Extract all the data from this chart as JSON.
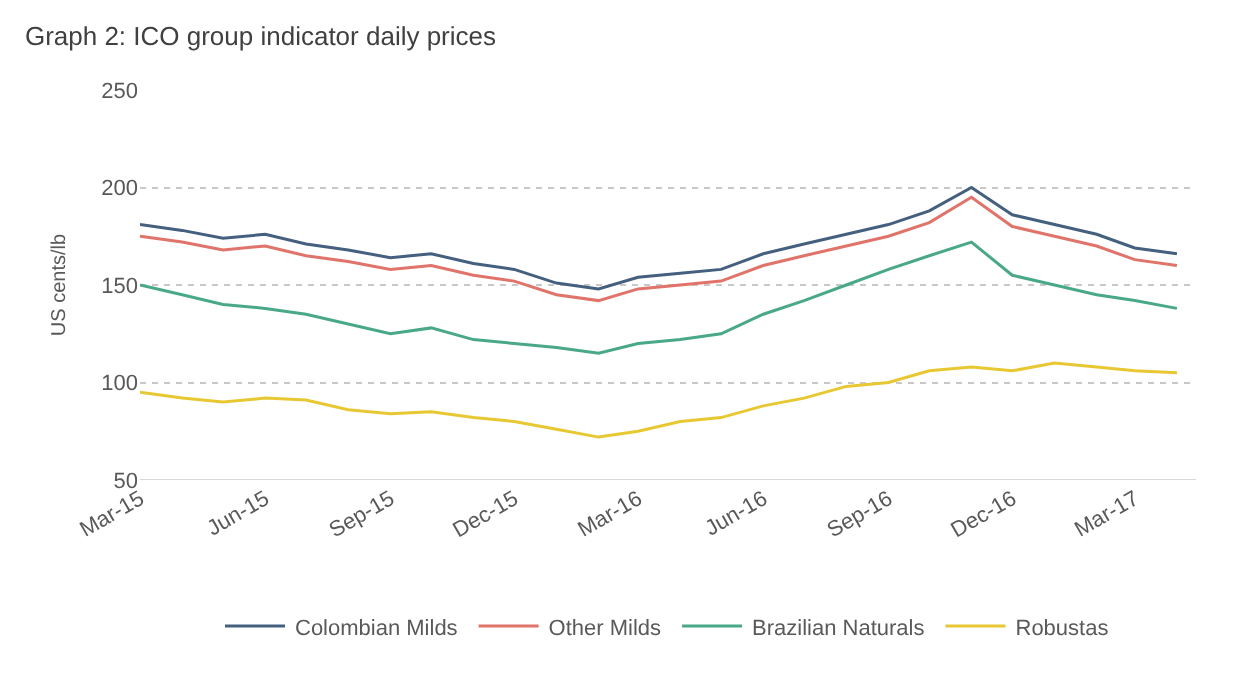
{
  "chart_data": {
    "type": "line",
    "title": "Graph 2: ICO group indicator daily prices",
    "ylabel": "US cents/lb",
    "x": [
      "2015-03-01",
      "2015-04-01",
      "2015-05-01",
      "2015-06-01",
      "2015-07-01",
      "2015-08-01",
      "2015-09-01",
      "2015-10-01",
      "2015-11-01",
      "2015-12-01",
      "2016-01-01",
      "2016-02-01",
      "2016-03-01",
      "2016-04-01",
      "2016-05-01",
      "2016-06-01",
      "2016-07-01",
      "2016-08-01",
      "2016-09-01",
      "2016-10-01",
      "2016-11-01",
      "2016-12-01",
      "2017-01-01",
      "2017-02-01",
      "2017-03-01",
      "2017-04-01"
    ],
    "series": [
      {
        "name": "Colombian Milds",
        "color": "#44607e",
        "values": [
          181,
          178,
          174,
          176,
          171,
          168,
          164,
          166,
          161,
          158,
          151,
          148,
          154,
          156,
          158,
          166,
          171,
          176,
          181,
          188,
          200,
          186,
          181,
          176,
          169,
          166
        ]
      },
      {
        "name": "Other Milds",
        "color": "#e0736a",
        "values": [
          175,
          172,
          168,
          170,
          165,
          162,
          158,
          160,
          155,
          152,
          145,
          142,
          148,
          150,
          152,
          160,
          165,
          170,
          175,
          182,
          195,
          180,
          175,
          170,
          163,
          160
        ]
      },
      {
        "name": "Brazilian Naturals",
        "color": "#4aa88a",
        "values": [
          150,
          145,
          140,
          138,
          135,
          130,
          125,
          128,
          122,
          120,
          118,
          115,
          120,
          122,
          125,
          135,
          142,
          150,
          158,
          165,
          172,
          155,
          150,
          145,
          142,
          138
        ]
      },
      {
        "name": "Robustas",
        "color": "#e8c832",
        "values": [
          95,
          92,
          90,
          92,
          91,
          86,
          84,
          85,
          82,
          80,
          76,
          72,
          75,
          80,
          82,
          88,
          92,
          98,
          100,
          106,
          108,
          106,
          110,
          108,
          106,
          105
        ]
      }
    ],
    "xlim": [
      "2015-03-01",
      "2017-04-15"
    ],
    "xticks": [
      {
        "value": "2015-03-01",
        "label": "Mar-15"
      },
      {
        "value": "2015-06-01",
        "label": "Jun-15"
      },
      {
        "value": "2015-09-01",
        "label": "Sep-15"
      },
      {
        "value": "2015-12-01",
        "label": "Dec-15"
      },
      {
        "value": "2016-03-01",
        "label": "Mar-16"
      },
      {
        "value": "2016-06-01",
        "label": "Jun-16"
      },
      {
        "value": "2016-09-01",
        "label": "Sep-16"
      },
      {
        "value": "2016-12-01",
        "label": "Dec-16"
      },
      {
        "value": "2017-03-01",
        "label": "Mar-17"
      }
    ],
    "ylim": [
      50,
      250
    ],
    "yticks": [
      50,
      100,
      150,
      200,
      250
    ],
    "grid": "y",
    "legend": "bottom",
    "marker": "none",
    "line_style": "solid"
  }
}
